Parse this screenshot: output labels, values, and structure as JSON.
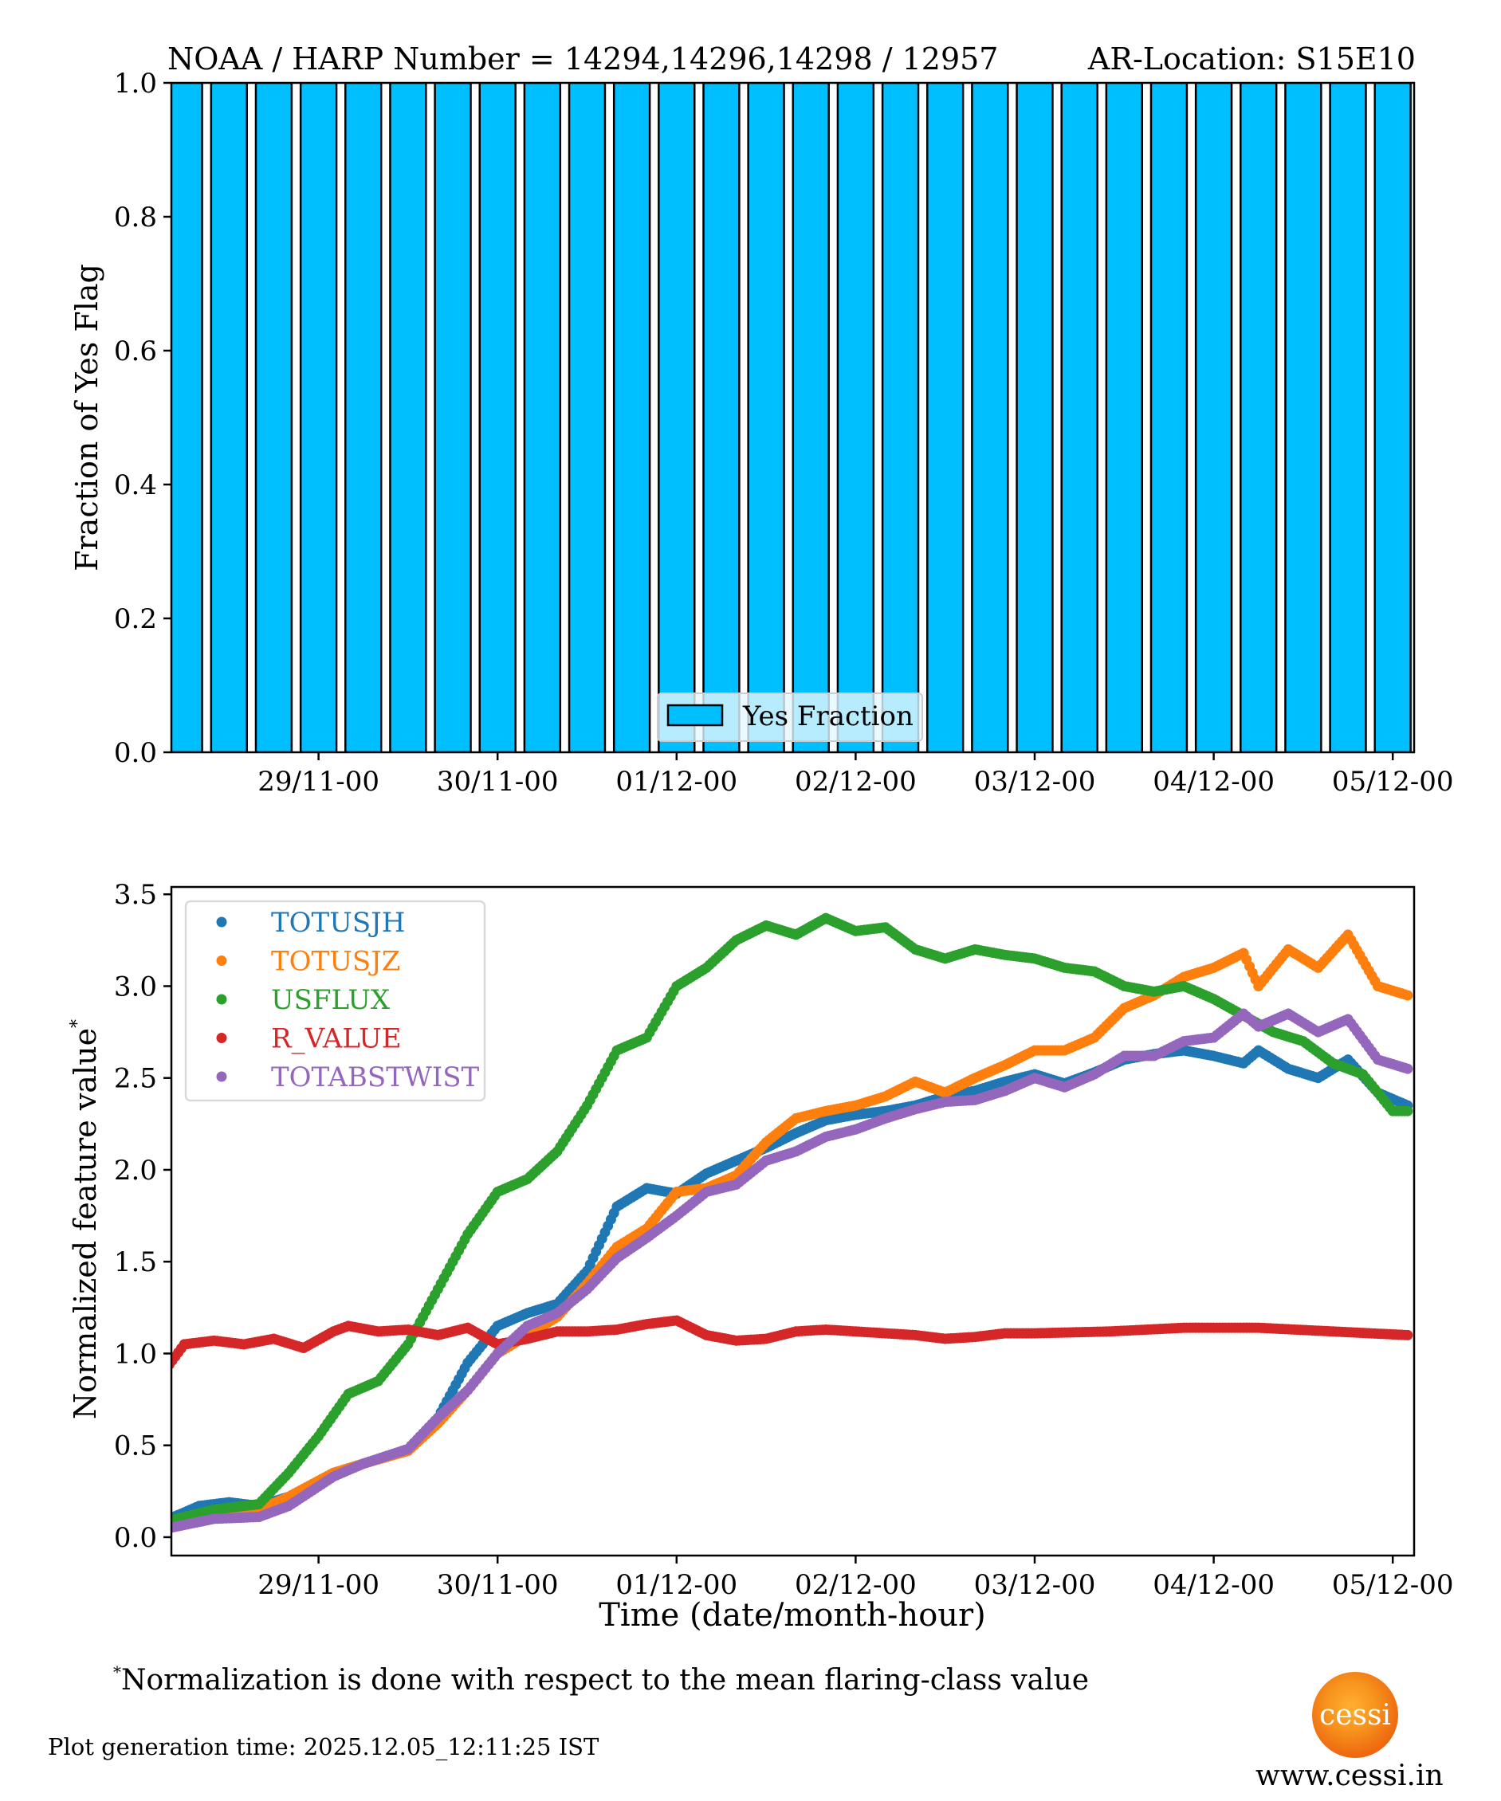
{
  "figure": {
    "title_left": "NOAA / HARP Number = 14294,14296,14298 / 12957",
    "title_right": "AR-Location: S15E10",
    "footnote_marker": "*",
    "footnote": "Normalization is done with respect to the mean flaring-class value",
    "generation_time": "Plot generation time: 2025.12.05_12:11:25 IST",
    "logo_text": "cessi",
    "website": "www.cessi.in"
  },
  "chart_data": [
    {
      "type": "bar",
      "ylabel": "Fraction of Yes Flag",
      "xlabel": "",
      "ylim": [
        0.0,
        1.0
      ],
      "yticks": [
        "0.0",
        "0.2",
        "0.4",
        "0.6",
        "0.8",
        "1.0"
      ],
      "xtick_labels": [
        "29/11-00",
        "30/11-00",
        "01/12-00",
        "02/12-00",
        "03/12-00",
        "04/12-00",
        "05/12-00"
      ],
      "xlim_hours_since_28_11_00": [
        4.3,
        171
      ],
      "bar_interval_hours": 6,
      "bar_color": "#00bfff",
      "bar_edge_color": "#000000",
      "legend": {
        "label": "Yes Fraction",
        "placement": "lower-center"
      },
      "categories": [
        "28/11-06",
        "28/11-12",
        "28/11-18",
        "29/11-00",
        "29/11-06",
        "29/11-12",
        "29/11-18",
        "30/11-00",
        "30/11-06",
        "30/11-12",
        "30/11-18",
        "01/12-00",
        "01/12-06",
        "01/12-12",
        "01/12-18",
        "02/12-00",
        "02/12-06",
        "02/12-12",
        "02/12-18",
        "03/12-00",
        "03/12-06",
        "03/12-12",
        "03/12-18",
        "04/12-00",
        "04/12-06",
        "04/12-12",
        "04/12-18",
        "05/12-00"
      ],
      "hours": [
        6,
        12,
        18,
        24,
        30,
        36,
        42,
        48,
        54,
        60,
        66,
        72,
        78,
        84,
        90,
        96,
        102,
        108,
        114,
        120,
        126,
        132,
        138,
        144,
        150,
        156,
        162,
        168
      ],
      "values": [
        1,
        1,
        1,
        1,
        1,
        1,
        1,
        1,
        1,
        1,
        1,
        1,
        1,
        1,
        1,
        1,
        1,
        1,
        1,
        1,
        1,
        1,
        1,
        1,
        1,
        1,
        1,
        1
      ]
    },
    {
      "type": "scatter",
      "ylabel": "Normalized feature value",
      "ylabel_marker": "*",
      "xlabel": "Time (date/month-hour)",
      "ylim": [
        -0.1,
        3.54
      ],
      "yticks": [
        "0.0",
        "0.5",
        "1.0",
        "1.5",
        "2.0",
        "2.5",
        "3.0",
        "3.5"
      ],
      "xtick_labels": [
        "29/11-00",
        "30/11-00",
        "01/12-00",
        "02/12-00",
        "03/12-00",
        "04/12-00",
        "05/12-00"
      ],
      "x_unit": "hours since 28/11-00",
      "xlim_hours": [
        4.3,
        171
      ],
      "legend_placement": "top-left",
      "series": [
        {
          "name": "TOTUSJH",
          "color": "#1f77b4",
          "x": [
            4,
            8,
            12,
            16,
            20,
            26,
            30,
            36,
            40,
            44,
            48,
            52,
            56,
            60,
            64,
            68,
            72,
            76,
            80,
            84,
            88,
            92,
            96,
            100,
            104,
            108,
            112,
            116,
            120,
            124,
            128,
            132,
            136,
            140,
            144,
            148,
            150,
            154,
            158,
            162,
            166,
            170
          ],
          "y": [
            0.1,
            0.17,
            0.19,
            0.17,
            0.22,
            0.35,
            0.4,
            0.48,
            0.65,
            0.95,
            1.15,
            1.22,
            1.27,
            1.45,
            1.8,
            1.9,
            1.87,
            1.98,
            2.05,
            2.12,
            2.2,
            2.27,
            2.3,
            2.32,
            2.35,
            2.4,
            2.43,
            2.48,
            2.52,
            2.47,
            2.53,
            2.6,
            2.63,
            2.65,
            2.62,
            2.58,
            2.65,
            2.55,
            2.5,
            2.6,
            2.42,
            2.35
          ]
        },
        {
          "name": "TOTUSJZ",
          "color": "#ff7f0e",
          "x": [
            4,
            10,
            16,
            20,
            26,
            30,
            36,
            40,
            44,
            48,
            52,
            56,
            60,
            64,
            68,
            72,
            76,
            80,
            84,
            88,
            92,
            96,
            100,
            104,
            108,
            112,
            116,
            120,
            124,
            128,
            132,
            136,
            140,
            144,
            148,
            150,
            154,
            158,
            162,
            166,
            170
          ],
          "y": [
            0.08,
            0.14,
            0.15,
            0.22,
            0.35,
            0.4,
            0.47,
            0.62,
            0.8,
            1.0,
            1.1,
            1.2,
            1.38,
            1.58,
            1.68,
            1.88,
            1.9,
            1.97,
            2.15,
            2.28,
            2.32,
            2.35,
            2.4,
            2.48,
            2.42,
            2.5,
            2.57,
            2.65,
            2.65,
            2.72,
            2.88,
            2.95,
            3.05,
            3.1,
            3.18,
            3.0,
            3.2,
            3.1,
            3.28,
            3.0,
            2.95
          ]
        },
        {
          "name": "USFLUX",
          "color": "#2ca02c",
          "x": [
            4,
            10,
            16,
            20,
            24,
            28,
            32,
            36,
            40,
            44,
            48,
            52,
            56,
            60,
            64,
            68,
            72,
            76,
            80,
            84,
            88,
            92,
            96,
            100,
            104,
            108,
            112,
            116,
            120,
            124,
            128,
            132,
            136,
            140,
            144,
            148,
            152,
            156,
            160,
            164,
            168,
            170
          ],
          "y": [
            0.09,
            0.15,
            0.18,
            0.35,
            0.55,
            0.78,
            0.85,
            1.05,
            1.35,
            1.65,
            1.88,
            1.95,
            2.1,
            2.35,
            2.65,
            2.72,
            3.0,
            3.1,
            3.25,
            3.33,
            3.28,
            3.37,
            3.3,
            3.32,
            3.2,
            3.15,
            3.2,
            3.17,
            3.15,
            3.1,
            3.08,
            3.0,
            2.97,
            3.0,
            2.93,
            2.84,
            2.75,
            2.7,
            2.58,
            2.52,
            2.32,
            2.32
          ]
        },
        {
          "name": "R_VALUE",
          "color": "#d62728",
          "x": [
            4,
            6,
            10,
            14,
            18,
            22,
            26,
            28,
            32,
            36,
            40,
            44,
            48,
            52,
            56,
            60,
            64,
            68,
            72,
            76,
            80,
            84,
            88,
            92,
            96,
            100,
            104,
            108,
            112,
            116,
            120,
            130,
            140,
            150,
            160,
            170
          ],
          "y": [
            0.94,
            1.05,
            1.07,
            1.05,
            1.08,
            1.03,
            1.12,
            1.15,
            1.12,
            1.13,
            1.1,
            1.14,
            1.05,
            1.08,
            1.12,
            1.12,
            1.13,
            1.16,
            1.18,
            1.1,
            1.07,
            1.08,
            1.12,
            1.13,
            1.12,
            1.11,
            1.1,
            1.08,
            1.09,
            1.11,
            1.11,
            1.12,
            1.14,
            1.14,
            1.12,
            1.1
          ]
        },
        {
          "name": "TOTABSTWIST",
          "color": "#9467bd",
          "x": [
            4,
            10,
            16,
            20,
            26,
            30,
            36,
            40,
            44,
            48,
            52,
            56,
            60,
            64,
            68,
            72,
            76,
            80,
            84,
            88,
            92,
            96,
            100,
            104,
            108,
            112,
            116,
            120,
            124,
            128,
            132,
            136,
            140,
            144,
            148,
            150,
            154,
            158,
            162,
            166,
            170
          ],
          "y": [
            0.05,
            0.1,
            0.11,
            0.17,
            0.33,
            0.4,
            0.48,
            0.65,
            0.8,
            1.0,
            1.15,
            1.22,
            1.35,
            1.52,
            1.63,
            1.75,
            1.88,
            1.92,
            2.05,
            2.1,
            2.18,
            2.22,
            2.28,
            2.33,
            2.37,
            2.38,
            2.43,
            2.5,
            2.45,
            2.52,
            2.62,
            2.62,
            2.7,
            2.72,
            2.85,
            2.78,
            2.85,
            2.75,
            2.82,
            2.6,
            2.55
          ]
        }
      ]
    }
  ]
}
